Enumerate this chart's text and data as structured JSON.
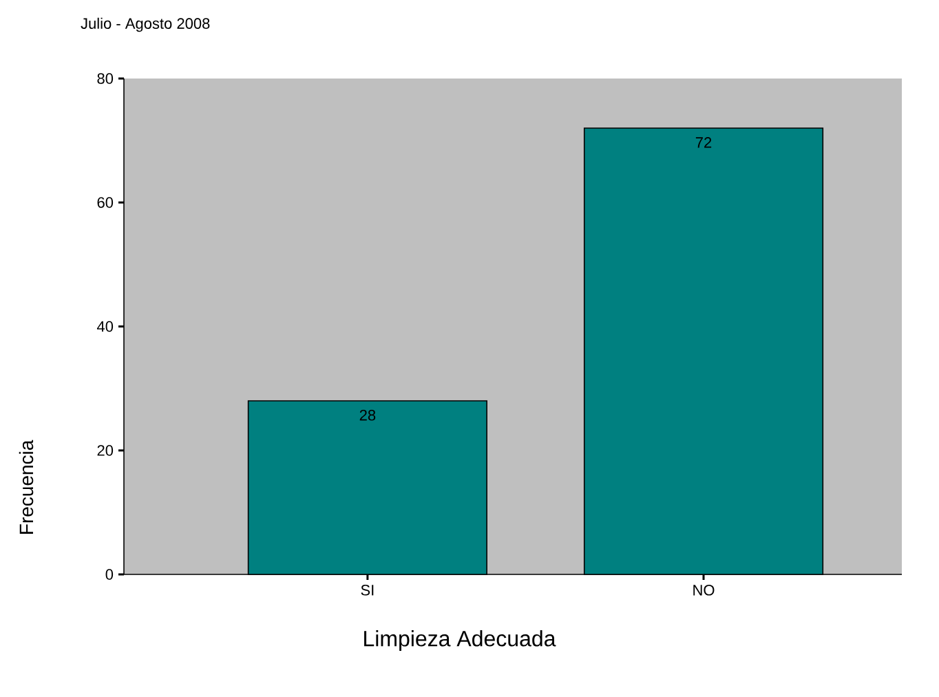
{
  "chart_data": {
    "type": "bar",
    "title": "Julio - Agosto 2008",
    "xlabel": "Limpieza Adecuada",
    "ylabel": "Frecuencia",
    "categories": [
      "SI",
      "NO"
    ],
    "values": [
      28,
      72
    ],
    "color": "#008080",
    "ylim": [
      0,
      80
    ],
    "yticks": [
      0,
      20,
      40,
      60,
      80
    ],
    "data_labels": true
  }
}
